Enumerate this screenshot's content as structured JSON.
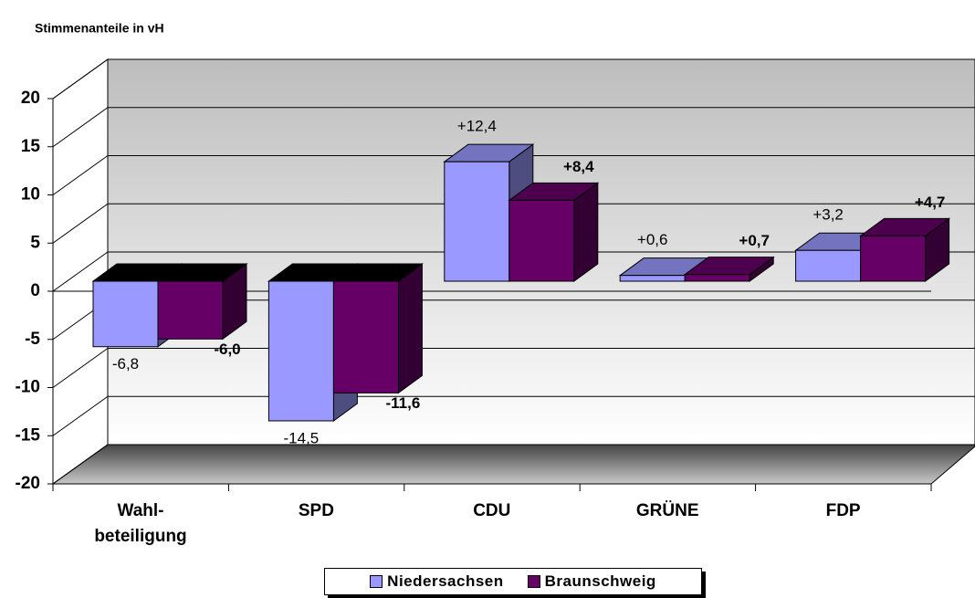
{
  "chart_data": {
    "type": "bar3d",
    "title": "Stimmenanteile in vH",
    "categories": [
      "Wahl-\nbeteiligung",
      "SPD",
      "CDU",
      "GRÜNE",
      "FDP"
    ],
    "series": [
      {
        "name": "Niedersachsen",
        "color": "#9999ff",
        "values": [
          -6.8,
          -14.5,
          12.4,
          0.6,
          3.2
        ],
        "value_labels": [
          "-6,8",
          "-14,5",
          "+12,4",
          "+0,6",
          "+3,2"
        ]
      },
      {
        "name": "Braunschweig",
        "color": "#660066",
        "values": [
          -6.0,
          -11.6,
          8.4,
          0.7,
          4.7
        ],
        "value_labels": [
          "-6,0",
          "-11,6",
          "+8,4",
          "+0,7",
          "+4,7"
        ]
      }
    ],
    "ylim": [
      -20,
      20
    ],
    "yticks": [
      -20,
      -15,
      -10,
      -5,
      0,
      5,
      10,
      15,
      20
    ],
    "grid": true,
    "legend": "bottom"
  }
}
